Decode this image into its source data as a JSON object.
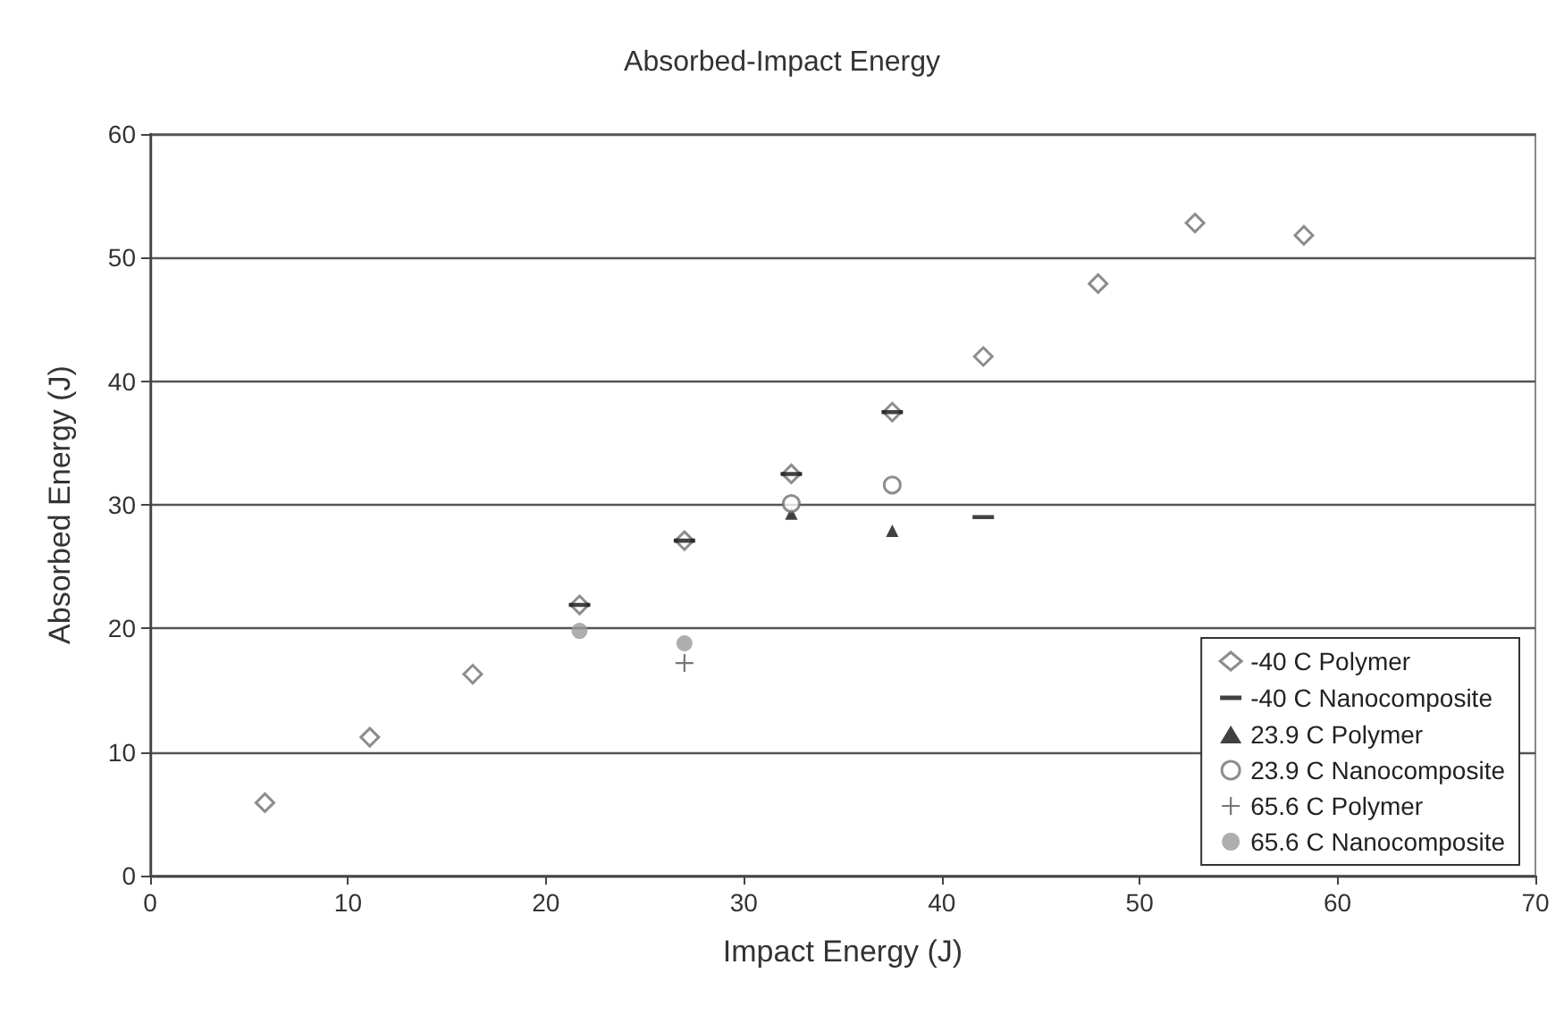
{
  "chart_data": {
    "type": "scatter",
    "title": "Absorbed-Impact Energy",
    "xlabel": "Impact Energy (J)",
    "ylabel": "Absorbed Energy (J)",
    "xlim": [
      0,
      70
    ],
    "xticks": [
      0,
      10,
      20,
      30,
      40,
      50,
      60,
      70
    ],
    "ylim": [
      0,
      60
    ],
    "yticks": [
      0,
      10,
      20,
      30,
      40,
      50,
      60
    ],
    "grid": "y",
    "legend": "bottom right",
    "series": [
      {
        "name": "-40 C Polymer",
        "color": "#707070",
        "marker": "diamond",
        "x": [
          5.8,
          11.1,
          16.3,
          21.7,
          27,
          32.4,
          37.5,
          42.1,
          47.9,
          52.8,
          58.3
        ],
        "values": [
          5.9,
          11.2,
          16.3,
          21.9,
          27.1,
          32.5,
          37.5,
          42,
          47.9,
          52.8,
          51.8
        ]
      },
      {
        "name": "-40 C Nanocomposite",
        "color": "#111111",
        "x": [
          21.7,
          27,
          32.4,
          37.5,
          42.1
        ],
        "values": [
          21.9,
          27.1,
          32.5,
          37.5,
          29
        ]
      },
      {
        "name": "23.9 C Polymer",
        "color": "#111111",
        "marker": "triangle",
        "x": [
          32.4,
          37.5
        ],
        "values": [
          29.3,
          27.9
        ]
      },
      {
        "name": "23.9 C Nanocomposite",
        "color": "#707070",
        "marker": "circle",
        "x": [
          32.4,
          37.5
        ],
        "values": [
          30.1,
          31.6
        ]
      },
      {
        "name": "65.6 C Polymer",
        "color": "#555555",
        "marker": "cross",
        "x": [
          27
        ],
        "values": [
          17.2
        ]
      },
      {
        "name": "65.6 C Nanocomposite",
        "color": "#9a9a9a",
        "marker": "circle",
        "x": [
          21.7,
          27
        ],
        "values": [
          19.8,
          18.8
        ]
      }
    ]
  }
}
